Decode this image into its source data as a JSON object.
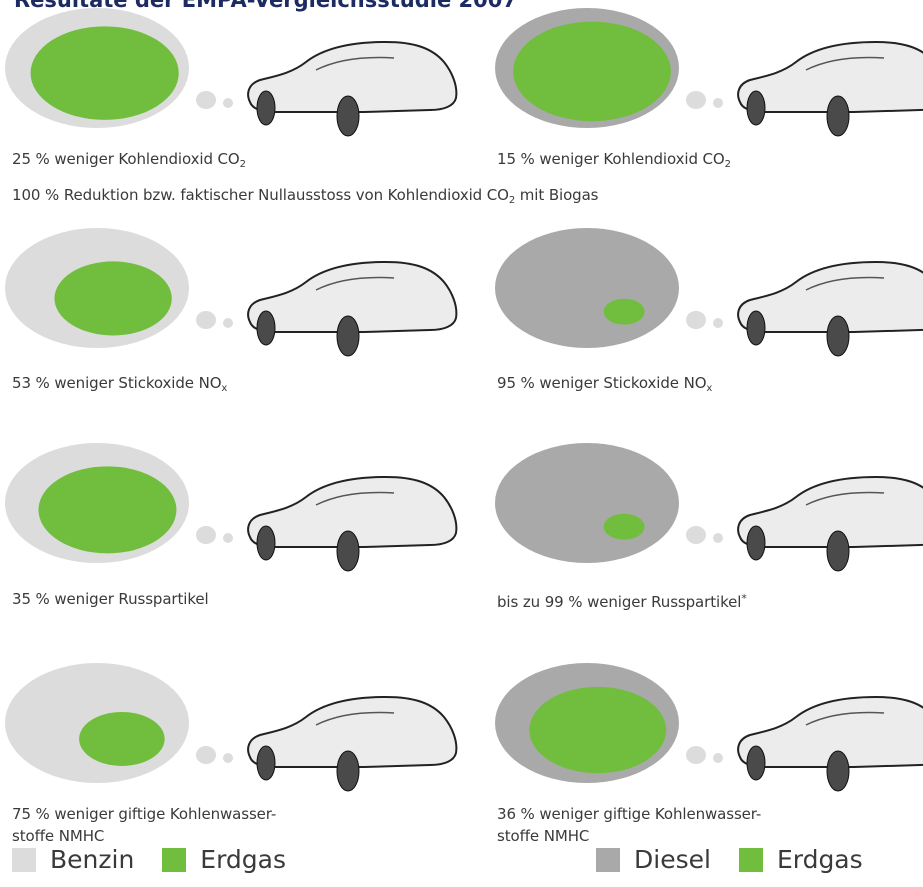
{
  "title": "Resultate der EMPA-Vergleichsstudie 2007",
  "colors": {
    "benzin": "#dcdcdc",
    "diesel": "#a9a9a9",
    "erdgas": "#71be3e",
    "car_body": "#ececec",
    "tire": "#4a4a4a"
  },
  "rows": [
    {
      "left": {
        "percent": 25,
        "caption_main": "25 % weniger Kohlendioxid CO",
        "caption_sub": "2",
        "reference": "Benzin"
      },
      "right": {
        "percent": 15,
        "caption_main": "15 % weniger Kohlendioxid CO",
        "caption_sub": "2",
        "reference": "Diesel"
      },
      "extra": {
        "caption_main": "100 % Reduktion bzw. faktischer Nullausstoss von Kohlendioxid CO",
        "caption_sub": "2",
        "caption_tail": " mit Biogas"
      }
    },
    {
      "left": {
        "percent": 53,
        "caption_main": "53 % weniger Stickoxide NO",
        "caption_sub": "x",
        "reference": "Benzin"
      },
      "right": {
        "percent": 95,
        "caption_main": "95 % weniger Stickoxide NO",
        "caption_sub": "x",
        "reference": "Diesel"
      }
    },
    {
      "left": {
        "percent": 35,
        "caption_main": "35 % weniger Russpartikel",
        "reference": "Benzin"
      },
      "right": {
        "percent": 99,
        "caption_main": "bis zu 99 % weniger Russpartikel",
        "caption_star": "*",
        "reference": "Diesel"
      }
    },
    {
      "left": {
        "percent": 75,
        "caption_main": "75 % weniger giftige Kohlenwasser-",
        "caption_line2": "stoffe NMHC",
        "reference": "Benzin"
      },
      "right": {
        "percent": 36,
        "caption_main": "36 % weniger giftige Kohlenwasser-",
        "caption_line2": "stoffe NMHC",
        "reference": "Diesel"
      }
    }
  ],
  "legend": {
    "left": [
      {
        "label": "Benzin",
        "color": "#dcdcdc"
      },
      {
        "label": "Erdgas",
        "color": "#71be3e"
      }
    ],
    "right": [
      {
        "label": "Diesel",
        "color": "#a9a9a9"
      },
      {
        "label": "Erdgas",
        "color": "#71be3e"
      }
    ]
  }
}
